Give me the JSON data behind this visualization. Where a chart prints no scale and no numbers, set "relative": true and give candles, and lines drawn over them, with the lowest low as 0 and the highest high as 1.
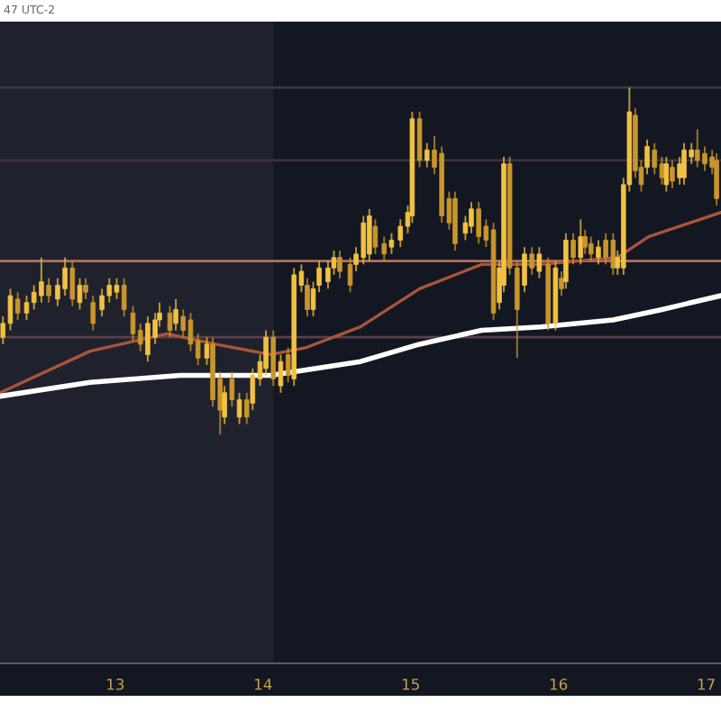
{
  "chart_data": {
    "type": "candlestick",
    "relative": true,
    "colors": [
      "#f2c141",
      "#f2c141",
      "#c9962c",
      "#f2c141",
      "#f2c141",
      "#f2c141",
      "#c9962c",
      "#f2c141",
      "#f2c141",
      "#c9962c",
      "#f2c141",
      "#c9962c",
      "#c9962c",
      "#f2c141",
      "#f2c141",
      "#f2c141",
      "#c9962c",
      "#c9962c",
      "#c9962c",
      "#f2c141",
      "#f2c141",
      "#f2c141",
      "#c9962c",
      "#f2c141",
      "#c9962c",
      "#c9962c",
      "#c9962c",
      "#f2c141",
      "#c9962c",
      "#c9962c",
      "#f2c141",
      "#c9962c",
      "#f2c141",
      "#c9962c",
      "#f2c141",
      "#f2c141",
      "#f2c141",
      "#c9962c",
      "#f2c141",
      "#c9962c",
      "#f2c141",
      "#f2c141",
      "#c9962c",
      "#f2c141",
      "#f2c141",
      "#f2c141",
      "#f2c141",
      "#c9962c",
      "#c9962c",
      "#f2c141",
      "#f2c141",
      "#f2c141",
      "#c9962c",
      "#c9962c",
      "#f2c141",
      "#f2c141",
      "#f2c141",
      "#f2c141",
      "#c9962c",
      "#f2c141",
      "#c9962c",
      "#c9962c",
      "#c9962c",
      "#c9962c",
      "#f2c141",
      "#f2c141",
      "#c9962c",
      "#c9962c",
      "#c9962c",
      "#f2c141",
      "#f2c141",
      "#c9962c",
      "#c9962c",
      "#f2c141",
      "#c9962c",
      "#f2c141",
      "#c9962c",
      "#f2c141",
      "#c9962c",
      "#f2c141",
      "#c9962c",
      "#f2c141",
      "#c9962c",
      "#c9962c",
      "#f2c141",
      "#c9962c",
      "#c9962c",
      "#f2c141",
      "#f2c141",
      "#f2c141",
      "#c9962c",
      "#c9962c",
      "#f2c141",
      "#c9962c",
      "#c9962c",
      "#f2c141",
      "#c9962c",
      "#f2c141",
      "#f2c141",
      "#f2c141",
      "#c9962c",
      "#c9962c",
      "#c9962c",
      "#c9962c"
    ],
    "x": [
      12.24,
      12.29,
      12.34,
      12.4,
      12.45,
      12.5,
      12.55,
      12.61,
      12.66,
      12.71,
      12.76,
      12.8,
      12.85,
      12.91,
      12.96,
      13.01,
      13.06,
      13.12,
      13.17,
      13.22,
      13.27,
      13.3,
      13.37,
      13.41,
      13.46,
      13.51,
      13.56,
      13.62,
      13.66,
      13.71,
      13.74,
      13.79,
      13.84,
      13.89,
      13.93,
      13.98,
      14.02,
      14.07,
      14.12,
      14.17,
      14.21,
      14.26,
      14.3,
      14.34,
      14.38,
      14.44,
      14.48,
      14.52,
      14.59,
      14.63,
      14.68,
      14.72,
      14.76,
      14.82,
      14.87,
      14.93,
      14.98,
      15.01,
      15.06,
      15.11,
      15.16,
      15.21,
      15.26,
      15.3,
      15.37,
      15.41,
      15.46,
      15.51,
      15.56,
      15.6,
      15.63,
      15.67,
      15.72,
      15.77,
      15.82,
      15.87,
      15.93,
      15.98,
      16.02,
      16.05,
      16.1,
      16.15,
      16.18,
      16.22,
      16.27,
      16.32,
      16.37,
      16.4,
      16.44,
      16.48,
      16.52,
      16.56,
      16.6,
      16.65,
      16.7,
      16.73,
      16.77,
      16.82,
      16.85,
      16.9,
      16.94,
      16.99,
      17.04,
      17.07
    ],
    "ohlc": [
      [
        0.28,
        0.34,
        0.26,
        0.32
      ],
      [
        0.32,
        0.42,
        0.3,
        0.4
      ],
      [
        0.39,
        0.41,
        0.33,
        0.35
      ],
      [
        0.35,
        0.4,
        0.33,
        0.38
      ],
      [
        0.38,
        0.43,
        0.36,
        0.41
      ],
      [
        0.4,
        0.51,
        0.38,
        0.44
      ],
      [
        0.43,
        0.45,
        0.38,
        0.4
      ],
      [
        0.39,
        0.45,
        0.37,
        0.43
      ],
      [
        0.42,
        0.51,
        0.4,
        0.48
      ],
      [
        0.48,
        0.5,
        0.37,
        0.39
      ],
      [
        0.38,
        0.45,
        0.36,
        0.43
      ],
      [
        0.43,
        0.45,
        0.39,
        0.41
      ],
      [
        0.38,
        0.4,
        0.3,
        0.32
      ],
      [
        0.36,
        0.42,
        0.34,
        0.4
      ],
      [
        0.4,
        0.45,
        0.38,
        0.43
      ],
      [
        0.41,
        0.45,
        0.39,
        0.43
      ],
      [
        0.43,
        0.45,
        0.34,
        0.36
      ],
      [
        0.35,
        0.37,
        0.27,
        0.29
      ],
      [
        0.3,
        0.32,
        0.24,
        0.26
      ],
      [
        0.23,
        0.34,
        0.21,
        0.32
      ],
      [
        0.28,
        0.35,
        0.26,
        0.33
      ],
      [
        0.33,
        0.38,
        0.31,
        0.35
      ],
      [
        0.35,
        0.37,
        0.28,
        0.3
      ],
      [
        0.32,
        0.39,
        0.3,
        0.36
      ],
      [
        0.34,
        0.36,
        0.28,
        0.3
      ],
      [
        0.33,
        0.35,
        0.24,
        0.26
      ],
      [
        0.27,
        0.29,
        0.2,
        0.22
      ],
      [
        0.22,
        0.28,
        0.2,
        0.26
      ],
      [
        0.26,
        0.28,
        0.08,
        0.1
      ],
      [
        0.16,
        0.18,
        0.0,
        0.07
      ],
      [
        0.05,
        0.14,
        0.03,
        0.12
      ],
      [
        0.16,
        0.18,
        0.08,
        0.1
      ],
      [
        0.05,
        0.12,
        0.03,
        0.1
      ],
      [
        0.1,
        0.12,
        0.03,
        0.05
      ],
      [
        0.09,
        0.19,
        0.07,
        0.17
      ],
      [
        0.16,
        0.23,
        0.14,
        0.21
      ],
      [
        0.19,
        0.3,
        0.17,
        0.28
      ],
      [
        0.28,
        0.3,
        0.14,
        0.16
      ],
      [
        0.14,
        0.23,
        0.12,
        0.21
      ],
      [
        0.23,
        0.25,
        0.15,
        0.17
      ],
      [
        0.16,
        0.48,
        0.14,
        0.46
      ],
      [
        0.43,
        0.49,
        0.41,
        0.47
      ],
      [
        0.43,
        0.45,
        0.34,
        0.36
      ],
      [
        0.36,
        0.44,
        0.34,
        0.42
      ],
      [
        0.43,
        0.5,
        0.41,
        0.48
      ],
      [
        0.44,
        0.5,
        0.42,
        0.48
      ],
      [
        0.48,
        0.53,
        0.46,
        0.51
      ],
      [
        0.51,
        0.53,
        0.45,
        0.47
      ],
      [
        0.49,
        0.51,
        0.41,
        0.43
      ],
      [
        0.49,
        0.54,
        0.47,
        0.52
      ],
      [
        0.51,
        0.63,
        0.49,
        0.61
      ],
      [
        0.52,
        0.65,
        0.5,
        0.63
      ],
      [
        0.6,
        0.62,
        0.52,
        0.54
      ],
      [
        0.55,
        0.57,
        0.5,
        0.52
      ],
      [
        0.54,
        0.58,
        0.52,
        0.56
      ],
      [
        0.56,
        0.62,
        0.54,
        0.6
      ],
      [
        0.6,
        0.66,
        0.58,
        0.64
      ],
      [
        0.63,
        0.93,
        0.61,
        0.91
      ],
      [
        0.91,
        0.93,
        0.77,
        0.79
      ],
      [
        0.79,
        0.84,
        0.77,
        0.82
      ],
      [
        0.82,
        0.86,
        0.75,
        0.77
      ],
      [
        0.81,
        0.83,
        0.61,
        0.63
      ],
      [
        0.68,
        0.7,
        0.59,
        0.61
      ],
      [
        0.68,
        0.7,
        0.53,
        0.55
      ],
      [
        0.58,
        0.63,
        0.56,
        0.61
      ],
      [
        0.6,
        0.67,
        0.58,
        0.65
      ],
      [
        0.65,
        0.67,
        0.55,
        0.57
      ],
      [
        0.6,
        0.62,
        0.54,
        0.56
      ],
      [
        0.59,
        0.61,
        0.33,
        0.35
      ],
      [
        0.38,
        0.5,
        0.36,
        0.48
      ],
      [
        0.43,
        0.8,
        0.41,
        0.78
      ],
      [
        0.78,
        0.8,
        0.46,
        0.48
      ],
      [
        0.48,
        0.5,
        0.22,
        0.36
      ],
      [
        0.43,
        0.54,
        0.41,
        0.52
      ],
      [
        0.52,
        0.54,
        0.46,
        0.48
      ],
      [
        0.47,
        0.54,
        0.45,
        0.52
      ],
      [
        0.49,
        0.51,
        0.3,
        0.32
      ],
      [
        0.32,
        0.5,
        0.3,
        0.48
      ],
      [
        0.45,
        0.47,
        0.4,
        0.42
      ],
      [
        0.44,
        0.58,
        0.42,
        0.56
      ],
      [
        0.56,
        0.58,
        0.49,
        0.51
      ],
      [
        0.51,
        0.62,
        0.49,
        0.57
      ],
      [
        0.57,
        0.59,
        0.52,
        0.54
      ],
      [
        0.55,
        0.57,
        0.5,
        0.52
      ],
      [
        0.51,
        0.56,
        0.49,
        0.54
      ],
      [
        0.56,
        0.58,
        0.49,
        0.51
      ],
      [
        0.56,
        0.58,
        0.46,
        0.48
      ],
      [
        0.48,
        0.53,
        0.46,
        0.51
      ],
      [
        0.48,
        0.74,
        0.46,
        0.72
      ],
      [
        0.72,
        1.0,
        0.7,
        0.93
      ],
      [
        0.92,
        0.94,
        0.74,
        0.76
      ],
      [
        0.77,
        0.79,
        0.7,
        0.72
      ],
      [
        0.77,
        0.85,
        0.75,
        0.83
      ],
      [
        0.82,
        0.84,
        0.75,
        0.77
      ],
      [
        0.78,
        0.8,
        0.72,
        0.74
      ],
      [
        0.72,
        0.8,
        0.7,
        0.78
      ],
      [
        0.77,
        0.79,
        0.71,
        0.73
      ],
      [
        0.74,
        0.8,
        0.72,
        0.78
      ],
      [
        0.74,
        0.84,
        0.72,
        0.82
      ],
      [
        0.8,
        0.84,
        0.78,
        0.82
      ],
      [
        0.82,
        0.88,
        0.77,
        0.79
      ],
      [
        0.81,
        0.83,
        0.76,
        0.78
      ],
      [
        0.8,
        0.82,
        0.75,
        0.77
      ],
      [
        0.79,
        0.81,
        0.66,
        0.68
      ]
    ],
    "series": [
      {
        "type": "line",
        "color": "#a8553a",
        "x": [
          12.22,
          12.83,
          13.35,
          13.68,
          14.05,
          14.29,
          14.66,
          15.06,
          15.48,
          15.88,
          16.4,
          16.61,
          17.1
        ],
        "values": [
          0.12,
          0.24,
          0.29,
          0.26,
          0.23,
          0.25,
          0.31,
          0.42,
          0.49,
          0.49,
          0.51,
          0.57,
          0.64
        ]
      },
      {
        "type": "line",
        "color": "#ffffff",
        "x": [
          12.22,
          12.83,
          13.44,
          14.05,
          14.66,
          15.06,
          15.48,
          15.88,
          16.37,
          16.7,
          17.1
        ],
        "values": [
          0.11,
          0.15,
          0.17,
          0.17,
          0.21,
          0.26,
          0.3,
          0.31,
          0.33,
          0.36,
          0.4
        ]
      }
    ],
    "ref_lines": [
      {
        "axis": "y",
        "value": 1.0,
        "color": "#363a47"
      },
      {
        "axis": "y",
        "value": 0.79,
        "color": "#3a3340"
      },
      {
        "axis": "y",
        "value": 0.5,
        "color": "#b86e58"
      },
      {
        "axis": "y",
        "value": 0.28,
        "color": "#5a3e4a"
      }
    ],
    "bands": [
      {
        "axis": "x",
        "from": 12.22,
        "to": 14.07,
        "color": "#1f222d"
      }
    ],
    "xlim": [
      12.22,
      17.1
    ],
    "xticks": [
      13,
      14,
      15,
      16,
      17
    ],
    "tick_labels": "x",
    "grid": false,
    "marker": "none",
    "line_style": "solid",
    "annotations": [
      "47 UTC-2"
    ]
  }
}
